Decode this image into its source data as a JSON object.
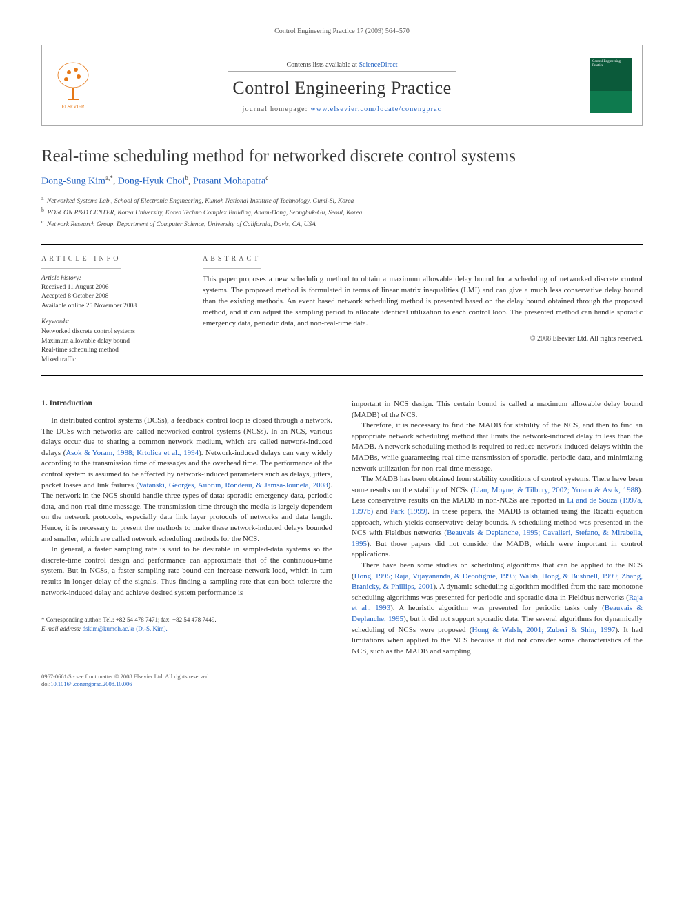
{
  "running_head": "Control Engineering Practice 17 (2009) 564–570",
  "header": {
    "contents_prefix": "Contents lists available at ",
    "contents_link": "ScienceDirect",
    "journal_name": "Control Engineering Practice",
    "homepage_prefix": "journal homepage: ",
    "homepage_link": "www.elsevier.com/locate/conengprac",
    "cover_label": "Control Engineering Practice",
    "elsevier_alt": "ELSEVIER"
  },
  "article": {
    "title": "Real-time scheduling method for networked discrete control systems",
    "authors": [
      {
        "name": "Dong-Sung Kim",
        "marks": "a,*"
      },
      {
        "name": "Dong-Hyuk Choi",
        "marks": "b"
      },
      {
        "name": "Prasant Mohapatra",
        "marks": "c"
      }
    ],
    "affiliations": [
      {
        "mark": "a",
        "text": "Networked Systems Lab., School of Electronic Engineering, Kumoh National Institute of Technology, Gumi-Si, Korea"
      },
      {
        "mark": "b",
        "text": "POSCON R&D CENTER, Korea University, Korea Techno Complex Building, Anam-Dong, Seongbuk-Gu, Seoul, Korea"
      },
      {
        "mark": "c",
        "text": "Network Research Group, Department of Computer Science, University of California, Davis, CA, USA"
      }
    ]
  },
  "meta": {
    "info_head": "ARTICLE INFO",
    "abstract_head": "ABSTRACT",
    "history_label": "Article history:",
    "history_lines": [
      "Received 11 August 2006",
      "Accepted 8 October 2008",
      "Available online 25 November 2008"
    ],
    "keywords_label": "Keywords:",
    "keywords": [
      "Networked discrete control systems",
      "Maximum allowable delay bound",
      "Real-time scheduling method",
      "Mixed traffic"
    ],
    "abstract": "This paper proposes a new scheduling method to obtain a maximum allowable delay bound for a scheduling of networked discrete control systems. The proposed method is formulated in terms of linear matrix inequalities (LMI) and can give a much less conservative delay bound than the existing methods. An event based network scheduling method is presented based on the delay bound obtained through the proposed method, and it can adjust the sampling period to allocate identical utilization to each control loop. The presented method can handle sporadic emergency data, periodic data, and non-real-time data.",
    "copyright": "© 2008 Elsevier Ltd. All rights reserved."
  },
  "body": {
    "sec_head": "1.  Introduction",
    "left_paragraphs": [
      "In distributed control systems (DCSs), a feedback control loop is closed through a network. The DCSs with networks are called networked control systems (NCSs). In an NCS, various delays occur due to sharing a common network medium, which are called network-induced delays (<a>Asok & Yoram, 1988; Krtolica et al., 1994</a>). Network-induced delays can vary widely according to the transmission time of messages and the overhead time. The performance of the control system is assumed to be affected by network-induced parameters such as delays, jitters, packet losses and link failures (<a>Vatanski, Georges, Aubrun, Rondeau, & Jamsa-Jounela, 2008</a>). The network in the NCS should handle three types of data: sporadic emergency data, periodic data, and non-real-time message. The transmission time through the media is largely dependent on the network protocols, especially data link layer protocols of networks and data length. Hence, it is necessary to present the methods to make these network-induced delays bounded and smaller, which are called network scheduling methods for the NCS.",
      "In general, a faster sampling rate is said to be desirable in sampled-data systems so the discrete-time control design and performance can approximate that of the continuous-time system. But in NCSs, a faster sampling rate bound can increase network load, which in turn results in longer delay of the signals. Thus finding a sampling rate that can both tolerate the network-induced delay and achieve desired system performance is"
    ],
    "right_paragraphs": [
      "important in NCS design. This certain bound is called a maximum allowable delay bound (MADB) of the NCS.",
      "Therefore, it is necessary to find the MADB for stability of the NCS, and then to find an appropriate network scheduling method that limits the network-induced delay to less than the MADB. A network scheduling method is required to reduce network-induced delays within the MADBs, while guaranteeing real-time transmission of sporadic, periodic data, and minimizing network utilization for non-real-time message.",
      "The MADB has been obtained from stability conditions of control systems. There have been some results on the stability of NCSs (<a>Lian, Moyne, & Tilbury, 2002; Yoram & Asok, 1988</a>). Less conservative results on the MADB in non-NCSs are reported in <a>Li and de Souza (1997a, 1997b)</a> and <a>Park (1999)</a>. In these papers, the MADB is obtained using the Ricatti equation approach, which yields conservative delay bounds. A scheduling method was presented in the NCS with Fieldbus networks (<a>Beauvais & Deplanche, 1995; Cavalieri, Stefano, & Mirabella, 1995</a>). But those papers did not consider the MADB, which were important in control applications.",
      "There have been some studies on scheduling algorithms that can be applied to the NCS (<a>Hong, 1995; Raja, Vijayananda, & Decotignie, 1993; Walsh, Hong, & Bushnell, 1999; Zhang, Branicky, & Phillips, 2001</a>). A dynamic scheduling algorithm modified from the rate monotone scheduling algorithms was presented for periodic and sporadic data in Fieldbus networks (<a>Raja et al., 1993</a>). A heuristic algorithm was presented for periodic tasks only (<a>Beauvais & Deplanche, 1995</a>), but it did not support sporadic data. The several algorithms for dynamically scheduling of NCSs were proposed (<a>Hong & Walsh, 2001; Zuberi & Shin, 1997</a>). It had limitations when applied to the NCS because it did not consider some characteristics of the NCS, such as the MADB and sampling"
    ]
  },
  "footnotes": {
    "corr_line": "* Corresponding author. Tel.: +82 54 478 7471; fax: +82 54 478 7449.",
    "email_label": "E-mail address: ",
    "email": "dskim@kumoh.ac.kr (D.-S. Kim)."
  },
  "bottom": {
    "line1": "0967-0661/$ - see front matter © 2008 Elsevier Ltd. All rights reserved.",
    "doi_prefix": "doi:",
    "doi": "10.1016/j.conengprac.2008.10.006"
  },
  "colors": {
    "link": "#2060c0",
    "text": "#333333",
    "rule": "#000000",
    "soft_rule": "#bbbbbb",
    "cover_top": "#0b5a3a",
    "cover_bottom": "#0e7a4e"
  },
  "typography": {
    "body_pt": 11,
    "title_pt": 25,
    "journal_pt": 26,
    "small_pt": 10,
    "tiny_pt": 9
  }
}
